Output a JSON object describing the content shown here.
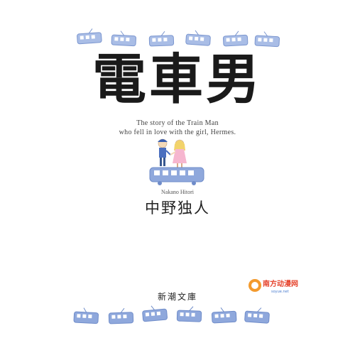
{
  "cover": {
    "title": "電車男",
    "subtitle_line1": "The story of the Train Man",
    "subtitle_line2": "who fell in love with the girl, Hermes.",
    "author_romaji": "Nakano Hitori",
    "author_japanese": "中野独人",
    "publisher": "新潮文庫"
  },
  "decorations": {
    "tram_color": "#8fa8dc",
    "tram_outline": "#6f8cc9",
    "top_tram_count": 6,
    "bottom_tram_count": 6,
    "illustration": "boy-and-girl-standing-on-tram"
  },
  "watermark": {
    "logo_name": "southern-animation-watermark-logo",
    "text": "南方动漫网",
    "url": "soyue.net"
  }
}
